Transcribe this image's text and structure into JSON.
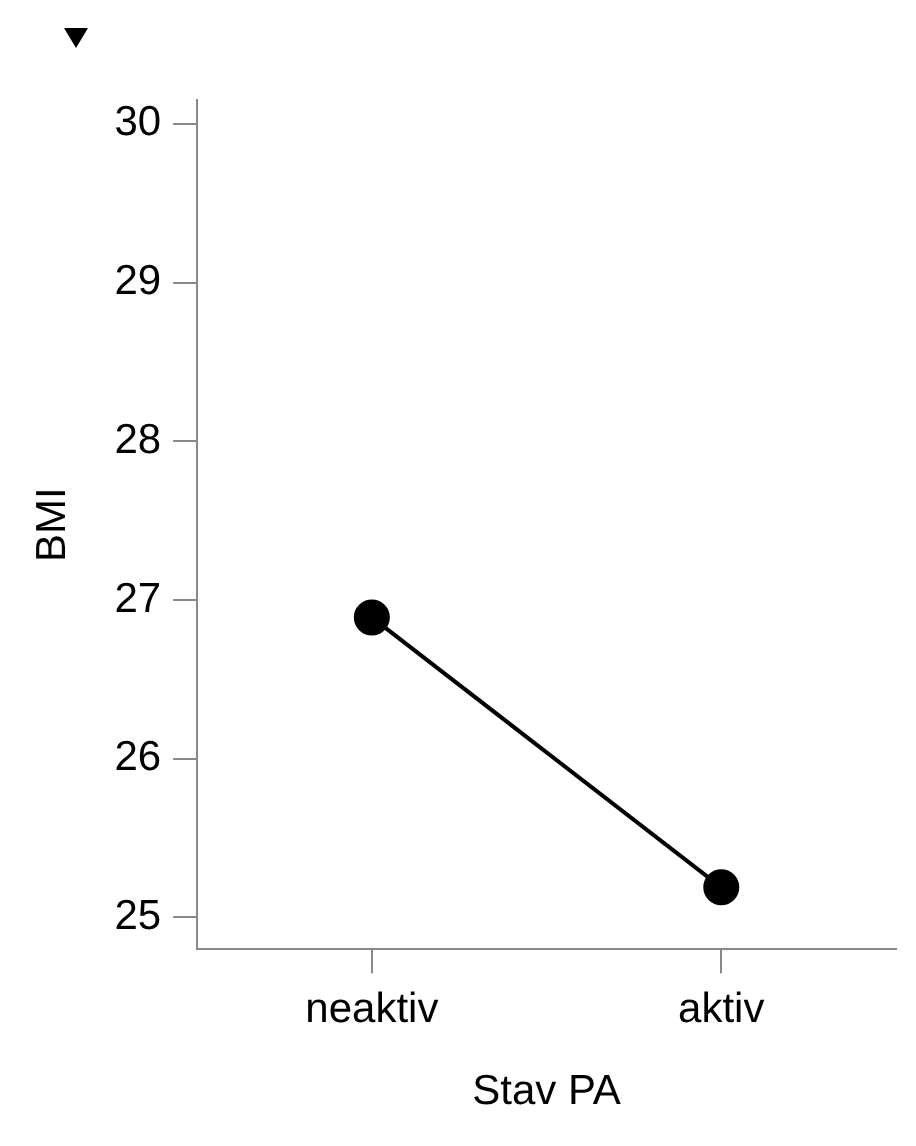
{
  "chart_data": {
    "type": "line",
    "xlabel": "Stav PA",
    "ylabel": "BMI",
    "categories": [
      "neaktiv",
      "aktiv"
    ],
    "series": [
      {
        "color": "#000000",
        "values": [
          26.89,
          25.19
        ]
      }
    ],
    "ylim": [
      24.8,
      30.15
    ],
    "yticks": [
      25,
      26,
      27,
      28,
      29,
      30
    ],
    "grid": false,
    "legend": false,
    "marker": "circle",
    "line_style": "solid"
  }
}
